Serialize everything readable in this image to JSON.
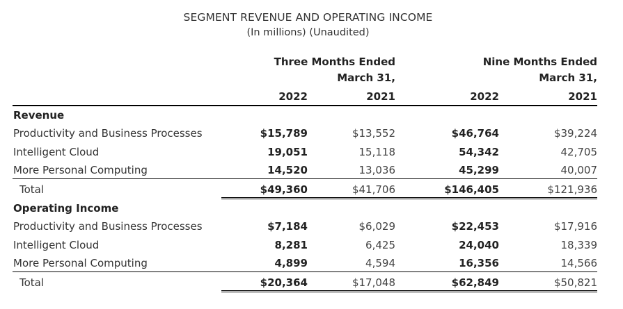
{
  "title": "SEGMENT REVENUE AND OPERATING INCOME",
  "subtitle": "(In millions) (Unaudited)",
  "headers": {
    "three_months_line1": "Three Months Ended",
    "three_months_line2": "March 31,",
    "nine_months_line1": "Nine Months Ended",
    "nine_months_line2": "March 31,",
    "years": [
      "2022",
      "2021",
      "2022",
      "2021"
    ]
  },
  "sections": [
    {
      "label": "Revenue",
      "rows": [
        {
          "label": "Productivity and Business Processes",
          "values": [
            "$15,789",
            "$13,552",
            "$46,764",
            "$39,224"
          ]
        },
        {
          "label": "Intelligent Cloud",
          "values": [
            "19,051",
            "15,118",
            "54,342",
            "42,705"
          ]
        },
        {
          "label": "More Personal Computing",
          "values": [
            "14,520",
            "13,036",
            "45,299",
            "40,007"
          ]
        }
      ],
      "total": {
        "label": "Total",
        "values": [
          "$49,360",
          "$41,706",
          "$146,405",
          "$121,936"
        ]
      }
    },
    {
      "label": "Operating Income",
      "rows": [
        {
          "label": "Productivity and Business Processes",
          "values": [
            "$7,184",
            "$6,029",
            "$22,453",
            "$17,916"
          ]
        },
        {
          "label": "Intelligent Cloud",
          "values": [
            "8,281",
            "6,425",
            "24,040",
            "18,339"
          ]
        },
        {
          "label": "More Personal Computing",
          "values": [
            "4,899",
            "4,594",
            "16,356",
            "14,566"
          ]
        }
      ],
      "total": {
        "label": "Total",
        "values": [
          "$20,364",
          "$17,048",
          "$62,849",
          "$50,821"
        ]
      }
    }
  ]
}
